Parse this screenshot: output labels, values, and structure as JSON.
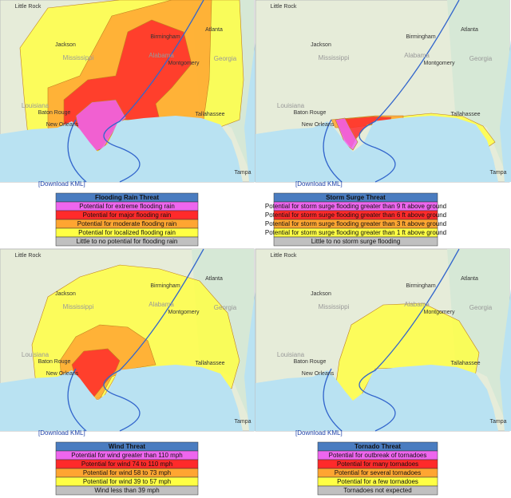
{
  "map_labels": [
    "Little Rock",
    "Birmingham",
    "Atlanta",
    "Jackson",
    "Montgomery",
    "Mississippi",
    "Alabama",
    "Georgia",
    "Louisiana",
    "Baton Rouge",
    "New Orleans",
    "Tallahassee",
    "Tampa"
  ],
  "download_link": "[Download KML]",
  "panels": [
    {
      "legend": {
        "title": "Flooding Rain Threat",
        "rows": [
          {
            "label": "Potential for extreme flooding rain",
            "color": "#ee66ee"
          },
          {
            "label": "Potential for major flooding rain",
            "color": "#ff2a2a"
          },
          {
            "label": "Potential for moderate flooding rain",
            "color": "#ffa531"
          },
          {
            "label": "Potential for localized flooding rain",
            "color": "#ffff44"
          },
          {
            "label": "Little to no potential for flooding rain",
            "color": "#c0c0c0"
          }
        ]
      }
    },
    {
      "legend": {
        "title": "Storm Surge Threat",
        "rows": [
          {
            "label": "Potential for storm surge flooding greater than 9 ft above ground",
            "color": "#ee66ee"
          },
          {
            "label": "Potential for storm surge flooding greater than 6 ft above ground",
            "color": "#ff2a2a"
          },
          {
            "label": "Potential for storm surge flooding greater than 3 ft above ground",
            "color": "#ffa531"
          },
          {
            "label": "Potential for storm surge flooding greater than 1 ft above ground",
            "color": "#ffff44"
          },
          {
            "label": "Little to no storm surge flooding",
            "color": "#c0c0c0"
          }
        ]
      }
    },
    {
      "legend": {
        "title": "Wind Threat",
        "rows": [
          {
            "label": "Potential for wind greater than 110 mph",
            "color": "#ee66ee"
          },
          {
            "label": "Potential for wind 74 to 110 mph",
            "color": "#ff2a2a"
          },
          {
            "label": "Potential for wind 58 to 73 mph",
            "color": "#ffa531"
          },
          {
            "label": "Potential for wind 39 to 57 mph",
            "color": "#ffff44"
          },
          {
            "label": "Wind less than 39 mph",
            "color": "#c0c0c0"
          }
        ]
      }
    },
    {
      "legend": {
        "title": "Tornado Threat",
        "rows": [
          {
            "label": "Potential for outbreak of tornadoes",
            "color": "#ee66ee"
          },
          {
            "label": "Potential for many tornadoes",
            "color": "#ff2a2a"
          },
          {
            "label": "Potential for several tornadoes",
            "color": "#ffa531"
          },
          {
            "label": "Potential for a few tornadoes",
            "color": "#ffff44"
          },
          {
            "label": "Tornadoes not expected",
            "color": "#c0c0c0"
          }
        ]
      }
    }
  ]
}
